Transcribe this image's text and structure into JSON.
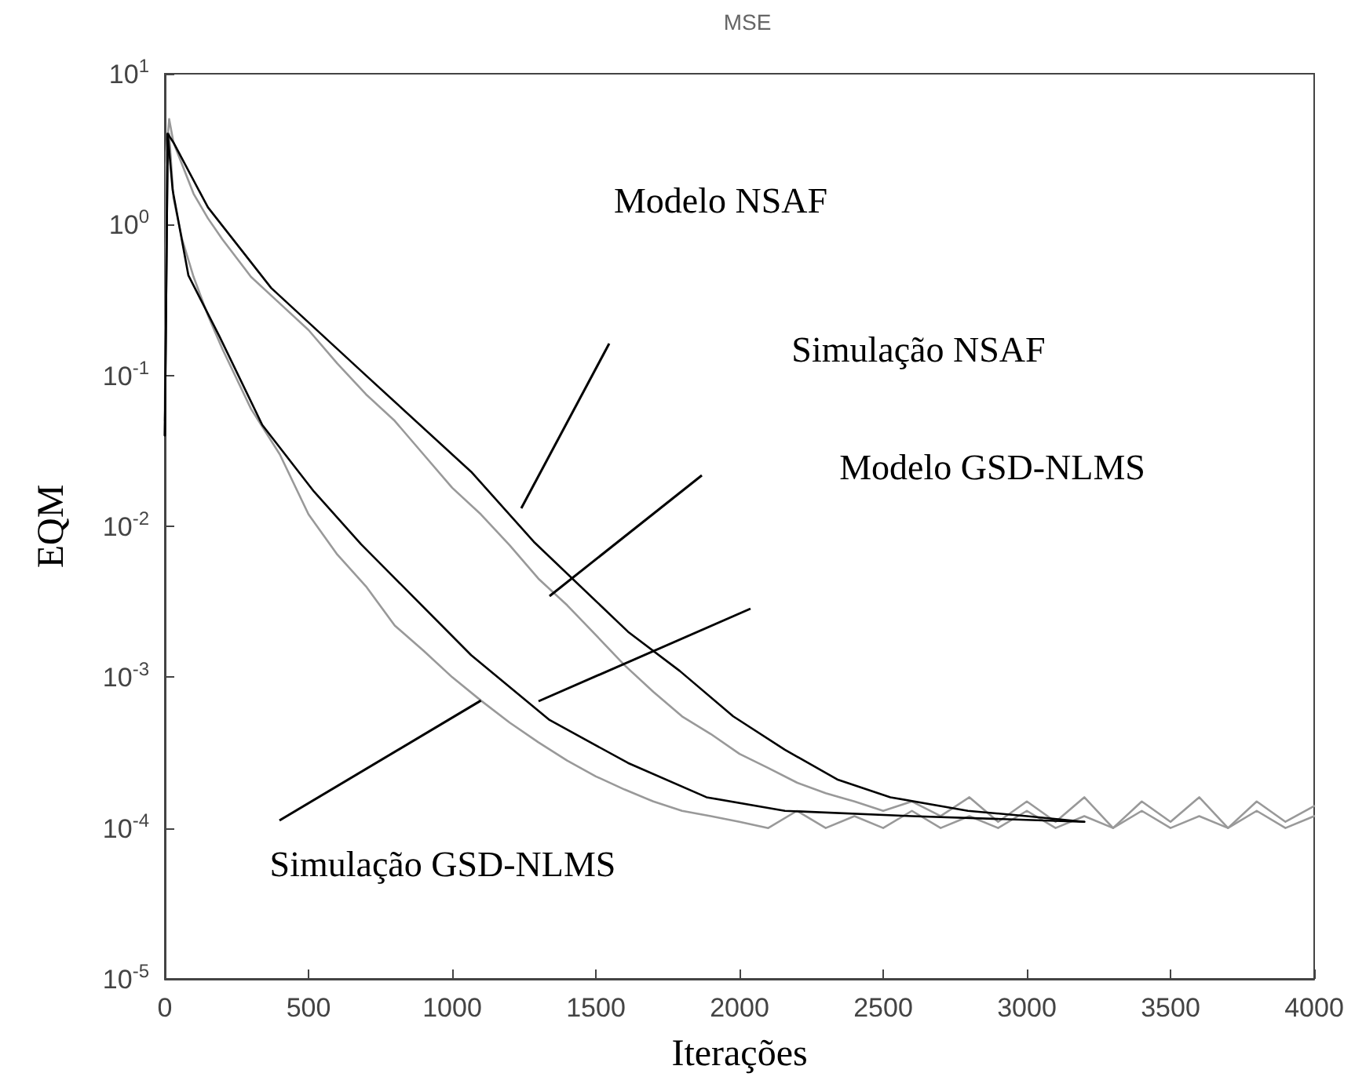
{
  "chart_data": {
    "type": "line",
    "title": "MSE",
    "xlabel": "Iterações",
    "ylabel": "EQM",
    "log": "y",
    "grid": false,
    "marker": "none",
    "line_style": "solid",
    "xlim": [
      0,
      4000
    ],
    "xticks": [
      0,
      500,
      1000,
      1500,
      2000,
      2500,
      3000,
      3500,
      4000
    ],
    "ylim": [
      1e-05,
      10
    ],
    "yticks": [
      {
        "value": 1e-05,
        "label": "10$^{-5}$"
      },
      {
        "value": 0.0001,
        "label": "10$^{-4}$"
      },
      {
        "value": 0.001,
        "label": "10$^{-3}$"
      },
      {
        "value": 0.01,
        "label": "10$^{-2}$"
      },
      {
        "value": 0.1,
        "label": "10$^{-1}$"
      },
      {
        "value": 1,
        "label": "10$^{0}$"
      },
      {
        "value": 10,
        "label": "10$^{1}$"
      }
    ],
    "series": [
      {
        "color": "#999999",
        "x": [
          0,
          5,
          15,
          30,
          60,
          100,
          150,
          200,
          300,
          400,
          500,
          600,
          700,
          800,
          900,
          1000,
          1100,
          1200,
          1300,
          1400,
          1500,
          1600,
          1700,
          1800,
          1900,
          2000,
          2100,
          2200,
          2300,
          2400,
          2500,
          2600,
          2700,
          2800,
          2900,
          3000,
          3100,
          3200,
          3300,
          3400,
          3500,
          3600,
          3700,
          3800,
          3900,
          4000
        ],
        "values": [
          0.04,
          3,
          5,
          3.5,
          2.5,
          1.6,
          1.1,
          0.8,
          0.45,
          0.3,
          0.2,
          0.12,
          0.075,
          0.05,
          0.03,
          0.018,
          0.012,
          0.0075,
          0.0045,
          0.003,
          0.0019,
          0.0012,
          0.0008,
          0.00055,
          0.00042,
          0.00031,
          0.00025,
          0.0002,
          0.00017,
          0.00015,
          0.00013,
          0.00015,
          0.00012,
          0.00016,
          0.00011,
          0.00015,
          0.00011,
          0.00016,
          0.0001,
          0.00015,
          0.00011,
          0.00016,
          0.0001,
          0.00015,
          0.00011,
          0.00014
        ]
      },
      {
        "color": "#999999",
        "x": [
          0,
          5,
          15,
          30,
          60,
          100,
          150,
          200,
          300,
          400,
          500,
          600,
          700,
          800,
          900,
          1000,
          1100,
          1200,
          1300,
          1400,
          1500,
          1600,
          1700,
          1800,
          1900,
          2000,
          2100,
          2200,
          2300,
          2400,
          2500,
          2600,
          2700,
          2800,
          2900,
          3000,
          3100,
          3200,
          3300,
          3400,
          3500,
          3600,
          3700,
          3800,
          3900,
          4000
        ],
        "values": [
          0.05,
          2.5,
          4,
          1.5,
          0.8,
          0.45,
          0.25,
          0.15,
          0.06,
          0.03,
          0.012,
          0.0065,
          0.004,
          0.0022,
          0.0015,
          0.001,
          0.0007,
          0.0005,
          0.00037,
          0.00028,
          0.00022,
          0.00018,
          0.00015,
          0.00013,
          0.00012,
          0.00011,
          0.0001,
          0.00013,
          0.0001,
          0.00012,
          0.0001,
          0.00013,
          0.0001,
          0.00012,
          0.0001,
          0.00013,
          0.0001,
          0.00012,
          0.0001,
          0.00013,
          0.0001,
          0.00012,
          0.0001,
          0.00013,
          0.0001,
          0.00012
        ]
      },
      {
        "color": "#000000",
        "x": [
          0,
          10,
          30,
          150,
          370,
          700,
          1066,
          1284,
          1612,
          1792,
          1978,
          2158,
          2340,
          2525,
          2795,
          3000,
          3200
        ],
        "values": [
          0.04,
          4,
          3.5,
          1.3,
          0.38,
          0.1,
          0.023,
          0.0079,
          0.002,
          0.0011,
          0.00055,
          0.00033,
          0.00021,
          0.00016,
          0.00013,
          0.00012,
          0.00011
        ]
      },
      {
        "color": "#000000",
        "x": [
          0,
          10,
          27,
          82,
          191,
          339,
          519,
          683,
          792,
          1066,
          1339,
          1612,
          1885,
          2158,
          2600,
          3200
        ],
        "values": [
          0.04,
          4,
          1.7,
          0.46,
          0.18,
          0.047,
          0.017,
          0.0076,
          0.0047,
          0.0014,
          0.00052,
          0.00027,
          0.00016,
          0.00013,
          0.00012,
          0.00011
        ]
      }
    ],
    "annotations": [
      "Modelo NSAF",
      "Simulação NSAF",
      "Modelo GSD-NLMS",
      {
        "text": "Simulação GSD-NLMS",
        "x": 1100,
        "y": 0.0007
      }
    ]
  }
}
